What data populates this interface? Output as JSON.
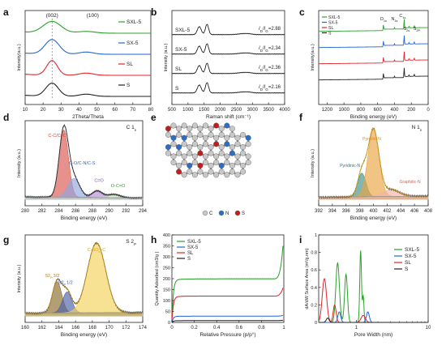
{
  "chart_data": [
    {
      "type": "line",
      "panel_letter": "a",
      "xlabel": "2Theta/Theta",
      "ylabel": "Intensity(a.u.)",
      "xlim": [
        10,
        80
      ],
      "xticks": [
        10,
        20,
        30,
        40,
        50,
        60,
        70,
        80
      ],
      "peak_labels": [
        {
          "text": "(002)",
          "x": 25
        },
        {
          "text": "(100)",
          "x": 44
        }
      ],
      "series": [
        {
          "name": "SXL-5",
          "color": "#2ca02c",
          "peaks": [
            [
              25,
              0.8,
              5
            ],
            [
              44,
              0.12,
              5
            ]
          ],
          "offset": 3
        },
        {
          "name": "SX-5",
          "color": "#2166d8",
          "peaks": [
            [
              25,
              1.0,
              4
            ],
            [
              44,
              0.15,
              4
            ]
          ],
          "offset": 2
        },
        {
          "name": "SL",
          "color": "#e0252a",
          "peaks": [
            [
              25,
              1.0,
              3
            ],
            [
              44,
              0.15,
              4
            ]
          ],
          "offset": 1
        },
        {
          "name": "S",
          "color": "#222222",
          "peaks": [
            [
              25,
              0.9,
              3.5
            ],
            [
              44,
              0.15,
              4
            ]
          ],
          "offset": 0
        }
      ]
    },
    {
      "type": "line",
      "panel_letter": "b",
      "xlabel": "Raman shift (cm⁻¹)",
      "ylabel": "Intensity (a.u.)",
      "xlim": [
        500,
        4000
      ],
      "xticks": [
        500,
        1000,
        1500,
        2000,
        2500,
        3000,
        3500,
        4000
      ],
      "series": [
        {
          "name": "SXL-5",
          "ratio": "2.88",
          "color": "#222222",
          "offset": 3
        },
        {
          "name": "SX-5",
          "ratio": "2.34",
          "color": "#222222",
          "offset": 2
        },
        {
          "name": "SL",
          "ratio": "2.36",
          "color": "#222222",
          "offset": 1
        },
        {
          "name": "S",
          "ratio": "2.16",
          "color": "#222222",
          "offset": 0
        }
      ],
      "ratio_label": "I",
      "ratio_sub_d": "D",
      "ratio_sub_g": "G",
      "peaks": [
        [
          1350,
          0.7,
          60
        ],
        [
          1590,
          0.9,
          50
        ]
      ]
    },
    {
      "type": "line",
      "panel_letter": "c",
      "xlabel": "Binding energy (eV)",
      "ylabel": "Intensity(a.u.)",
      "xlim": [
        1300,
        0
      ],
      "xticks": [
        1200,
        1000,
        800,
        600,
        400,
        200,
        0
      ],
      "peak_labels": [
        {
          "text": "O",
          "sub": "1s",
          "x": 532
        },
        {
          "text": "N",
          "sub": "1s",
          "x": 400
        },
        {
          "text": "C",
          "sub": "1s",
          "x": 285
        },
        {
          "text": "S",
          "sub": "2s",
          "x": 228
        },
        {
          "text": "S",
          "sub": "2P",
          "x": 165
        }
      ],
      "series": [
        {
          "name": "SXL-5",
          "color": "#2ca02c",
          "offset": 3
        },
        {
          "name": "SX-5",
          "color": "#2166d8",
          "offset": 2
        },
        {
          "name": "SL",
          "color": "#e0252a",
          "offset": 1
        },
        {
          "name": "S",
          "color": "#222222",
          "offset": 0
        }
      ]
    },
    {
      "type": "area",
      "panel_letter": "d",
      "core_level": "C 1",
      "core_sub": "s",
      "xlabel": "Binding energy (eV)",
      "ylabel": "Intensity (a.u.)",
      "xlim": [
        280,
        294
      ],
      "xticks": [
        280,
        282,
        284,
        286,
        288,
        290,
        292,
        294
      ],
      "components": [
        {
          "name": "C-C/C=C",
          "center": 284.6,
          "height": 1.0,
          "width": 0.55,
          "fill": "#d8564f",
          "label_color": "#d63a35"
        },
        {
          "name": "C-O/C-N/C-S",
          "center": 285.8,
          "height": 0.28,
          "width": 0.7,
          "fill": "#8fa8e0",
          "label_color": "#3a5fc8"
        },
        {
          "name": "C=O",
          "center": 288.6,
          "height": 0.1,
          "width": 0.6,
          "fill": "#b98ad8",
          "label_color": "#8e3fc4"
        },
        {
          "name": "O-C=O",
          "center": 290.6,
          "height": 0.05,
          "width": 0.7,
          "fill": "#bfe3b4",
          "label_color": "#2ca02c"
        }
      ]
    },
    {
      "type": "area",
      "panel_letter": "f",
      "core_level": "N 1",
      "core_sub": "s",
      "xlabel": "Binding energy (eV)",
      "ylabel": "Intensity (a.u.)",
      "xlim": [
        392,
        408
      ],
      "xticks": [
        392,
        394,
        396,
        398,
        400,
        402,
        404,
        406,
        408
      ],
      "components": [
        {
          "name": "Pyridinic-N",
          "center": 398.3,
          "height": 0.35,
          "width": 0.6,
          "fill": "#3d8f8a",
          "label_color": "#2a7a74"
        },
        {
          "name": "Pyrrolic-N",
          "center": 400.0,
          "height": 1.0,
          "width": 0.8,
          "fill": "#e9a441",
          "label_color": "#e08a1e"
        },
        {
          "name": "Graphitic-N",
          "center": 402.6,
          "height": 0.1,
          "width": 1.2,
          "fill": "#f2b3a6",
          "label_color": "#e2604a"
        }
      ]
    },
    {
      "type": "area",
      "panel_letter": "g",
      "core_level": "S 2",
      "core_sub": "P",
      "xlabel": "Binding energy (eV)",
      "ylabel": "Intensity (a.u.)",
      "xlim": [
        160,
        174
      ],
      "xticks": [
        160,
        162,
        164,
        166,
        168,
        170,
        172,
        174
      ],
      "components": [
        {
          "name": "S2P 3/2",
          "label_main": "S2",
          "label_sub": "P",
          "label_frac": "3/2",
          "center": 163.8,
          "height": 0.45,
          "width": 0.55,
          "fill": "#8b6c2a",
          "label_color": "#b07d1a"
        },
        {
          "name": "S2P 1/2",
          "label_main": "S2",
          "label_sub": "P",
          "label_frac": "1/2",
          "center": 165.0,
          "height": 0.3,
          "width": 0.55,
          "fill": "#4b5fa8",
          "label_color": "#3e52b8"
        },
        {
          "name": "C-SOₓ-C",
          "label_main": "C-SO",
          "label_sub": "x",
          "label_frac": "-C",
          "center": 168.5,
          "height": 1.0,
          "width": 1.1,
          "fill": "#f3d35a",
          "label_color": "#d4a21a"
        }
      ]
    },
    {
      "type": "line",
      "panel_letter": "h",
      "xlabel": "Relative Pressure (p/p°)",
      "ylabel": "Quantity Adsorbed (cm3/g )",
      "xlim": [
        0,
        1.0
      ],
      "ylim": [
        0,
        400
      ],
      "xticks": [
        0.0,
        0.2,
        0.4,
        0.6,
        0.8,
        1.0
      ],
      "yticks": [
        0,
        50,
        100,
        150,
        200,
        250,
        300,
        350,
        400
      ],
      "series": [
        {
          "name": "SXL-5",
          "color": "#2ca02c",
          "plateau": 195,
          "end": 365
        },
        {
          "name": "SX-5",
          "color": "#2166d8",
          "plateau": 28,
          "end": 32
        },
        {
          "name": "SL",
          "color": "#e0252a",
          "plateau": 118,
          "end": 160
        },
        {
          "name": "S",
          "color": "#222222",
          "plateau": 8,
          "end": 10
        }
      ]
    },
    {
      "type": "line",
      "panel_letter": "i",
      "xlabel": "Pore Width (nm)",
      "ylabel": "dA/dW Surface Area (m²/g.nm)",
      "xscale": "log",
      "xlim": [
        0.3,
        10
      ],
      "ylim": [
        0,
        1.0
      ],
      "yticks": [
        0.0,
        0.2,
        0.4,
        0.6,
        0.8,
        1.0
      ],
      "xtick_labels": [
        "1",
        "10"
      ],
      "series": [
        {
          "name": "SXL-5",
          "color": "#2ca02c",
          "peaks": [
            [
              0.55,
              0.68,
              0.025
            ],
            [
              0.72,
              0.55,
              0.02
            ],
            [
              1.15,
              0.82,
              0.012
            ],
            [
              1.25,
              0.3,
              0.01
            ]
          ]
        },
        {
          "name": "SX-5",
          "color": "#2166d8",
          "peaks": [
            [
              0.58,
              0.12,
              0.02
            ],
            [
              1.45,
              0.12,
              0.02
            ]
          ]
        },
        {
          "name": "SL",
          "color": "#e0252a",
          "peaks": [
            [
              0.36,
              0.5,
              0.03
            ],
            [
              0.5,
              0.2,
              0.02
            ],
            [
              1.25,
              0.08,
              0.03
            ]
          ]
        },
        {
          "name": "S",
          "color": "#222222",
          "peaks": [
            [
              0.4,
              0.05,
              0.02
            ]
          ]
        }
      ]
    }
  ],
  "panel_e": {
    "panel_letter": "e",
    "legend": [
      {
        "label": "C",
        "color": "#c8c8c8"
      },
      {
        "label": "N",
        "color": "#2a6ec8"
      },
      {
        "label": "S",
        "color": "#c01d1d"
      }
    ]
  }
}
